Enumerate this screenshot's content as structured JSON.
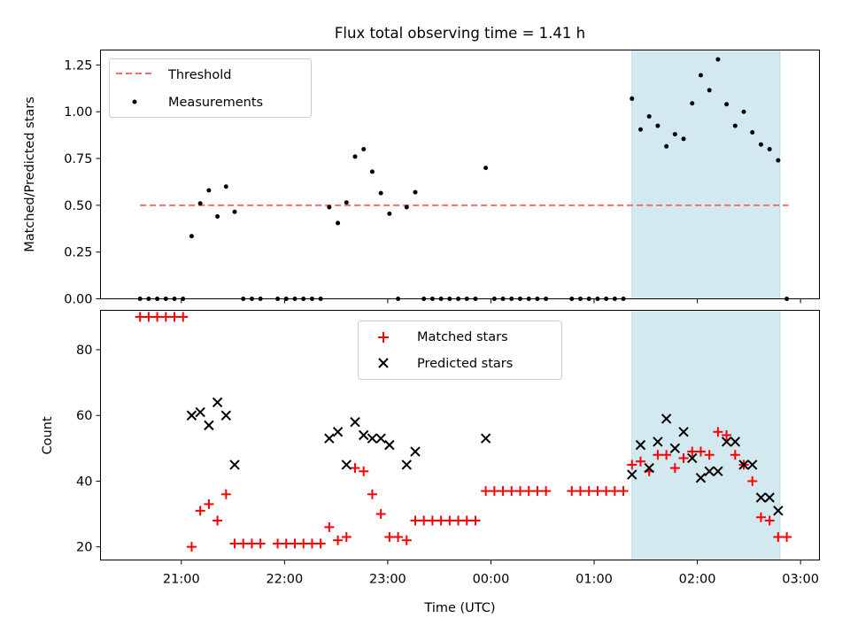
{
  "chart_data": [
    {
      "type": "scatter",
      "title": "Flux total observing time = 1.41 h",
      "ylabel": "Matched/Predicted stars",
      "xlabel": "",
      "ylim": [
        0,
        1.33
      ],
      "yticks": [
        "0.00",
        "0.25",
        "0.50",
        "0.75",
        "1.00",
        "1.25"
      ],
      "legend_position": "upper-left",
      "highlight": {
        "start": "01:22",
        "end": "02:48",
        "color": "#d3e9f0"
      },
      "threshold": {
        "name": "Threshold",
        "value": 0.5,
        "x_range": [
          "20:36",
          "02:53"
        ],
        "color": "#f07070"
      },
      "series": [
        {
          "name": "Measurements",
          "color": "#000000",
          "points": [
            [
              "20:36",
              0
            ],
            [
              "20:41",
              0
            ],
            [
              "20:46",
              0
            ],
            [
              "20:51",
              0
            ],
            [
              "20:56",
              0
            ],
            [
              "21:01",
              0
            ],
            [
              "21:06",
              0.335
            ],
            [
              "21:11",
              0.51
            ],
            [
              "21:16",
              0.58
            ],
            [
              "21:21",
              0.44
            ],
            [
              "21:26",
              0.6
            ],
            [
              "21:31",
              0.465
            ],
            [
              "21:36",
              0
            ],
            [
              "21:41",
              0
            ],
            [
              "21:46",
              0
            ],
            [
              "21:56",
              0
            ],
            [
              "22:01",
              0
            ],
            [
              "22:06",
              0
            ],
            [
              "22:11",
              0
            ],
            [
              "22:16",
              0
            ],
            [
              "22:21",
              0
            ],
            [
              "22:26",
              0.49
            ],
            [
              "22:31",
              0.405
            ],
            [
              "22:36",
              0.515
            ],
            [
              "22:41",
              0.76
            ],
            [
              "22:46",
              0.8
            ],
            [
              "22:51",
              0.68
            ],
            [
              "22:56",
              0.565
            ],
            [
              "23:01",
              0.455
            ],
            [
              "23:06",
              0
            ],
            [
              "23:11",
              0.49
            ],
            [
              "23:16",
              0.57
            ],
            [
              "23:21",
              0
            ],
            [
              "23:26",
              0
            ],
            [
              "23:31",
              0
            ],
            [
              "23:36",
              0
            ],
            [
              "23:41",
              0
            ],
            [
              "23:46",
              0
            ],
            [
              "23:51",
              0
            ],
            [
              "23:57",
              0.7
            ],
            [
              "00:02",
              0
            ],
            [
              "00:07",
              0
            ],
            [
              "00:12",
              0
            ],
            [
              "00:17",
              0
            ],
            [
              "00:22",
              0
            ],
            [
              "00:27",
              0
            ],
            [
              "00:32",
              0
            ],
            [
              "00:47",
              0
            ],
            [
              "00:52",
              0
            ],
            [
              "00:57",
              0
            ],
            [
              "01:02",
              0
            ],
            [
              "01:07",
              0
            ],
            [
              "01:12",
              0
            ],
            [
              "01:17",
              0
            ],
            [
              "01:22",
              1.07
            ],
            [
              "01:27",
              0.905
            ],
            [
              "01:32",
              0.975
            ],
            [
              "01:37",
              0.925
            ],
            [
              "01:42",
              0.815
            ],
            [
              "01:47",
              0.88
            ],
            [
              "01:52",
              0.855
            ],
            [
              "01:57",
              1.045
            ],
            [
              "02:02",
              1.195
            ],
            [
              "02:07",
              1.115
            ],
            [
              "02:12",
              1.28
            ],
            [
              "02:17",
              1.04
            ],
            [
              "02:22",
              0.925
            ],
            [
              "02:27",
              1.0
            ],
            [
              "02:32",
              0.89
            ],
            [
              "02:37",
              0.825
            ],
            [
              "02:42",
              0.8
            ],
            [
              "02:47",
              0.74
            ],
            [
              "02:52",
              0
            ]
          ]
        }
      ]
    },
    {
      "type": "scatter",
      "title": "",
      "ylabel": "Count",
      "xlabel": "Time (UTC)",
      "ylim": [
        16,
        92
      ],
      "yticks": [
        "20",
        "40",
        "60",
        "80"
      ],
      "xticks": [
        "21:00",
        "22:00",
        "23:00",
        "00:00",
        "01:00",
        "02:00",
        "03:00"
      ],
      "legend_position": "upper-center",
      "highlight": {
        "start": "01:22",
        "end": "02:48",
        "color": "#d3e9f0"
      },
      "series": [
        {
          "name": "Matched stars",
          "marker": "plus",
          "color": "#ff0000",
          "points": [
            [
              "20:36",
              90
            ],
            [
              "20:41",
              90
            ],
            [
              "20:46",
              90
            ],
            [
              "20:51",
              90
            ],
            [
              "20:56",
              90
            ],
            [
              "21:01",
              90
            ],
            [
              "21:06",
              20
            ],
            [
              "21:11",
              31
            ],
            [
              "21:16",
              33
            ],
            [
              "21:21",
              28
            ],
            [
              "21:26",
              36
            ],
            [
              "21:31",
              21
            ],
            [
              "21:36",
              21
            ],
            [
              "21:41",
              21
            ],
            [
              "21:46",
              21
            ],
            [
              "21:56",
              21
            ],
            [
              "22:01",
              21
            ],
            [
              "22:06",
              21
            ],
            [
              "22:11",
              21
            ],
            [
              "22:16",
              21
            ],
            [
              "22:21",
              21
            ],
            [
              "22:26",
              26
            ],
            [
              "22:31",
              22
            ],
            [
              "22:36",
              23
            ],
            [
              "22:41",
              44
            ],
            [
              "22:46",
              43
            ],
            [
              "22:51",
              36
            ],
            [
              "22:56",
              30
            ],
            [
              "23:01",
              23
            ],
            [
              "23:06",
              23
            ],
            [
              "23:11",
              22
            ],
            [
              "23:16",
              28
            ],
            [
              "23:21",
              28
            ],
            [
              "23:26",
              28
            ],
            [
              "23:31",
              28
            ],
            [
              "23:36",
              28
            ],
            [
              "23:41",
              28
            ],
            [
              "23:46",
              28
            ],
            [
              "23:51",
              28
            ],
            [
              "23:57",
              37
            ],
            [
              "00:02",
              37
            ],
            [
              "00:07",
              37
            ],
            [
              "00:12",
              37
            ],
            [
              "00:17",
              37
            ],
            [
              "00:22",
              37
            ],
            [
              "00:27",
              37
            ],
            [
              "00:32",
              37
            ],
            [
              "00:47",
              37
            ],
            [
              "00:52",
              37
            ],
            [
              "00:57",
              37
            ],
            [
              "01:02",
              37
            ],
            [
              "01:07",
              37
            ],
            [
              "01:12",
              37
            ],
            [
              "01:17",
              37
            ],
            [
              "01:22",
              45
            ],
            [
              "01:27",
              46
            ],
            [
              "01:32",
              43
            ],
            [
              "01:37",
              48
            ],
            [
              "01:42",
              48
            ],
            [
              "01:47",
              44
            ],
            [
              "01:52",
              47
            ],
            [
              "01:57",
              49
            ],
            [
              "02:02",
              49
            ],
            [
              "02:07",
              48
            ],
            [
              "02:12",
              55
            ],
            [
              "02:17",
              54
            ],
            [
              "02:22",
              48
            ],
            [
              "02:27",
              45
            ],
            [
              "02:32",
              40
            ],
            [
              "02:37",
              29
            ],
            [
              "02:42",
              28
            ],
            [
              "02:47",
              23
            ],
            [
              "02:52",
              23
            ]
          ]
        },
        {
          "name": "Predicted stars",
          "marker": "x",
          "color": "#000000",
          "points": [
            [
              "21:06",
              60
            ],
            [
              "21:11",
              61
            ],
            [
              "21:16",
              57
            ],
            [
              "21:21",
              64
            ],
            [
              "21:26",
              60
            ],
            [
              "21:31",
              45
            ],
            [
              "22:26",
              53
            ],
            [
              "22:31",
              55
            ],
            [
              "22:36",
              45
            ],
            [
              "22:41",
              58
            ],
            [
              "22:46",
              54
            ],
            [
              "22:51",
              53
            ],
            [
              "22:56",
              53
            ],
            [
              "23:01",
              51
            ],
            [
              "23:11",
              45
            ],
            [
              "23:16",
              49
            ],
            [
              "23:57",
              53
            ],
            [
              "01:22",
              42
            ],
            [
              "01:27",
              51
            ],
            [
              "01:32",
              44
            ],
            [
              "01:37",
              52
            ],
            [
              "01:42",
              59
            ],
            [
              "01:47",
              50
            ],
            [
              "01:52",
              55
            ],
            [
              "01:57",
              47
            ],
            [
              "02:02",
              41
            ],
            [
              "02:07",
              43
            ],
            [
              "02:12",
              43
            ],
            [
              "02:17",
              52
            ],
            [
              "02:22",
              52
            ],
            [
              "02:27",
              45
            ],
            [
              "02:32",
              45
            ],
            [
              "02:37",
              35
            ],
            [
              "02:42",
              35
            ],
            [
              "02:47",
              31
            ]
          ]
        }
      ]
    }
  ]
}
